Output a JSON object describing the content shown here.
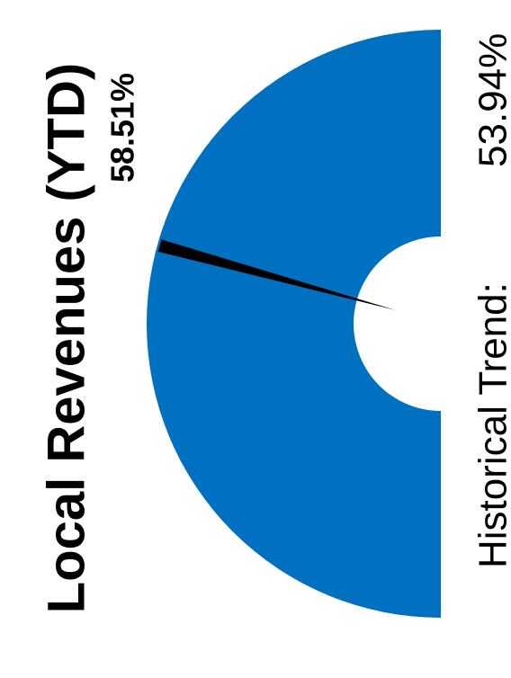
{
  "chart_data": {
    "type": "gauge",
    "title": "Local Revenues (YTD)",
    "value": 58.51,
    "value_label": "58.51%",
    "historical_trend_label": "Historical Trend:",
    "historical_trend_value": "53.94%",
    "historical_trend": 53.94,
    "range": [
      0,
      100
    ],
    "colors": {
      "gauge": "#0070C0",
      "needle": "#000000"
    }
  }
}
